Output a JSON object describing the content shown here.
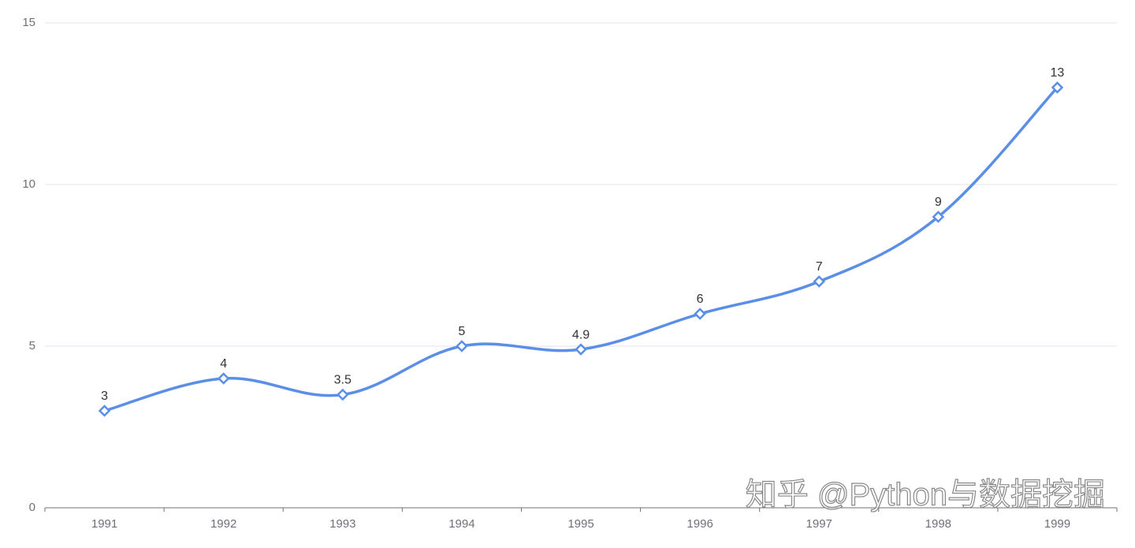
{
  "chart_data": {
    "type": "line",
    "categories": [
      "1991",
      "1992",
      "1993",
      "1994",
      "1995",
      "1996",
      "1997",
      "1998",
      "1999"
    ],
    "series": [
      {
        "color": "#5b8ee6",
        "values": [
          3,
          4,
          3.5,
          5,
          4.9,
          6,
          7,
          9,
          13
        ]
      }
    ],
    "ylim": [
      0,
      15
    ],
    "yticks": [
      0,
      5,
      10,
      15
    ],
    "grid": true,
    "smooth": true,
    "marker": "diamond",
    "watermark": "知乎 @Python与数据挖掘"
  }
}
